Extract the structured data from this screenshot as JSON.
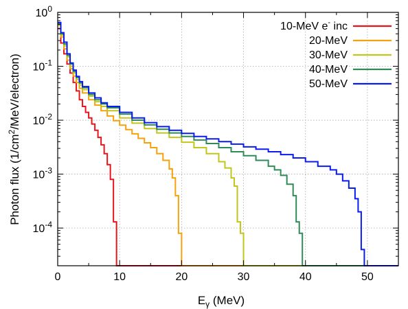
{
  "chart_data": {
    "type": "line",
    "title": "",
    "xlabel_main": "E",
    "xlabel_sub": "γ",
    "xlabel_rest": " (MeV)",
    "ylabel_pre": "Photon flux (1/cm",
    "ylabel_sup": "2",
    "ylabel_post": "/MeV/electron)",
    "x_ticks": [
      "0",
      "10",
      "20",
      "30",
      "40",
      "50"
    ],
    "y_ticks": [
      {
        "base": "10",
        "exp": "0",
        "value": 1
      },
      {
        "base": "10",
        "exp": "-1",
        "value": 0.1
      },
      {
        "base": "10",
        "exp": "-2",
        "value": 0.01
      },
      {
        "base": "10",
        "exp": "-3",
        "value": 0.001
      },
      {
        "base": "10",
        "exp": "-4",
        "value": 0.0001
      }
    ],
    "xlim": [
      0,
      55
    ],
    "ylim": [
      2e-05,
      1
    ],
    "yscale": "log",
    "grid": true,
    "legend_position": "top-right",
    "series": [
      {
        "name": "10-MeV e- inc",
        "label_pre": "10-MeV e",
        "label_sup": "-",
        "label_post": " inc",
        "color": "#e8141b",
        "points": [
          [
            0,
            0.5
          ],
          [
            0.5,
            0.27
          ],
          [
            1,
            0.17
          ],
          [
            1.5,
            0.11
          ],
          [
            2,
            0.075
          ],
          [
            2.5,
            0.05
          ],
          [
            3,
            0.035
          ],
          [
            3.5,
            0.024
          ],
          [
            4,
            0.018
          ],
          [
            4.5,
            0.014
          ],
          [
            5,
            0.011
          ],
          [
            5.5,
            0.0085
          ],
          [
            6,
            0.0065
          ],
          [
            6.5,
            0.0048
          ],
          [
            7,
            0.0035
          ],
          [
            7.5,
            0.0024
          ],
          [
            8,
            0.0015
          ],
          [
            8.5,
            0.0008
          ],
          [
            9,
            0.00013
          ],
          [
            9.5,
            2e-05
          ]
        ]
      },
      {
        "name": "20-MeV",
        "label_pre": "20-MeV",
        "color": "#f5a20a",
        "points": [
          [
            0,
            0.58
          ],
          [
            0.5,
            0.35
          ],
          [
            1,
            0.21
          ],
          [
            1.5,
            0.13
          ],
          [
            2,
            0.09
          ],
          [
            2.5,
            0.066
          ],
          [
            3,
            0.05
          ],
          [
            3.5,
            0.039
          ],
          [
            4,
            0.032
          ],
          [
            5,
            0.024
          ],
          [
            6,
            0.019
          ],
          [
            7,
            0.015
          ],
          [
            8,
            0.012
          ],
          [
            9,
            0.0098
          ],
          [
            10,
            0.0081
          ],
          [
            11,
            0.0067
          ],
          [
            12,
            0.0056
          ],
          [
            13,
            0.0046
          ],
          [
            14,
            0.0038
          ],
          [
            15,
            0.0031
          ],
          [
            16,
            0.0024
          ],
          [
            17,
            0.0018
          ],
          [
            18,
            0.00125
          ],
          [
            18.5,
            0.00085
          ],
          [
            19,
            0.0004
          ],
          [
            19.5,
            8e-05
          ],
          [
            20,
            2e-05
          ]
        ]
      },
      {
        "name": "30-MeV",
        "label_pre": "30-MeV",
        "color": "#c2c51a",
        "points": [
          [
            0,
            0.6
          ],
          [
            0.5,
            0.38
          ],
          [
            1,
            0.24
          ],
          [
            1.5,
            0.15
          ],
          [
            2,
            0.1
          ],
          [
            2.5,
            0.075
          ],
          [
            3,
            0.057
          ],
          [
            3.5,
            0.045
          ],
          [
            4,
            0.037
          ],
          [
            5,
            0.028
          ],
          [
            6,
            0.022
          ],
          [
            7,
            0.018
          ],
          [
            8,
            0.015
          ],
          [
            10,
            0.011
          ],
          [
            12,
            0.0088
          ],
          [
            14,
            0.007
          ],
          [
            16,
            0.0058
          ],
          [
            18,
            0.0048
          ],
          [
            20,
            0.0039
          ],
          [
            22,
            0.0031
          ],
          [
            24,
            0.0024
          ],
          [
            26,
            0.0017
          ],
          [
            27,
            0.0013
          ],
          [
            28,
            0.00085
          ],
          [
            28.5,
            0.0006
          ],
          [
            29,
            0.00013
          ],
          [
            29.5,
            8e-05
          ],
          [
            30,
            2e-05
          ]
        ]
      },
      {
        "name": "40-MeV",
        "label_pre": "40-MeV",
        "color": "#2e8b57",
        "points": [
          [
            0,
            0.62
          ],
          [
            0.5,
            0.4
          ],
          [
            1,
            0.26
          ],
          [
            1.5,
            0.16
          ],
          [
            2,
            0.11
          ],
          [
            2.5,
            0.08
          ],
          [
            3,
            0.062
          ],
          [
            3.5,
            0.049
          ],
          [
            4,
            0.04
          ],
          [
            5,
            0.03
          ],
          [
            6,
            0.024
          ],
          [
            7,
            0.02
          ],
          [
            8,
            0.017
          ],
          [
            10,
            0.013
          ],
          [
            12,
            0.01
          ],
          [
            14,
            0.0082
          ],
          [
            16,
            0.0068
          ],
          [
            18,
            0.0058
          ],
          [
            20,
            0.005
          ],
          [
            22,
            0.0043
          ],
          [
            24,
            0.0037
          ],
          [
            26,
            0.0031
          ],
          [
            28,
            0.0026
          ],
          [
            30,
            0.0022
          ],
          [
            32,
            0.0018
          ],
          [
            34,
            0.0014
          ],
          [
            35,
            0.0012
          ],
          [
            36,
            0.00095
          ],
          [
            37,
            0.00065
          ],
          [
            38,
            0.0004
          ],
          [
            38.5,
            0.00013
          ],
          [
            39,
            8e-05
          ],
          [
            39.5,
            2e-05
          ]
        ]
      },
      {
        "name": "50-MeV",
        "label_pre": "50-MeV",
        "color": "#0a1bf0",
        "points": [
          [
            0,
            0.65
          ],
          [
            0.5,
            0.42
          ],
          [
            1,
            0.28
          ],
          [
            1.5,
            0.17
          ],
          [
            2,
            0.115
          ],
          [
            2.5,
            0.085
          ],
          [
            3,
            0.065
          ],
          [
            3.5,
            0.052
          ],
          [
            4,
            0.042
          ],
          [
            5,
            0.032
          ],
          [
            6,
            0.026
          ],
          [
            7,
            0.021
          ],
          [
            8,
            0.018
          ],
          [
            10,
            0.014
          ],
          [
            12,
            0.011
          ],
          [
            14,
            0.009
          ],
          [
            16,
            0.0076
          ],
          [
            18,
            0.0065
          ],
          [
            20,
            0.0057
          ],
          [
            22,
            0.005
          ],
          [
            24,
            0.0045
          ],
          [
            26,
            0.004
          ],
          [
            28,
            0.0036
          ],
          [
            30,
            0.0032
          ],
          [
            32,
            0.0029
          ],
          [
            34,
            0.0026
          ],
          [
            36,
            0.0023
          ],
          [
            38,
            0.002
          ],
          [
            40,
            0.0017
          ],
          [
            42,
            0.0014
          ],
          [
            44,
            0.0012
          ],
          [
            45,
            0.001
          ],
          [
            46,
            0.00075
          ],
          [
            47,
            0.00055
          ],
          [
            48,
            0.00035
          ],
          [
            48.5,
            0.0002
          ],
          [
            49,
            4e-05
          ],
          [
            49.5,
            2e-05
          ]
        ]
      }
    ]
  }
}
